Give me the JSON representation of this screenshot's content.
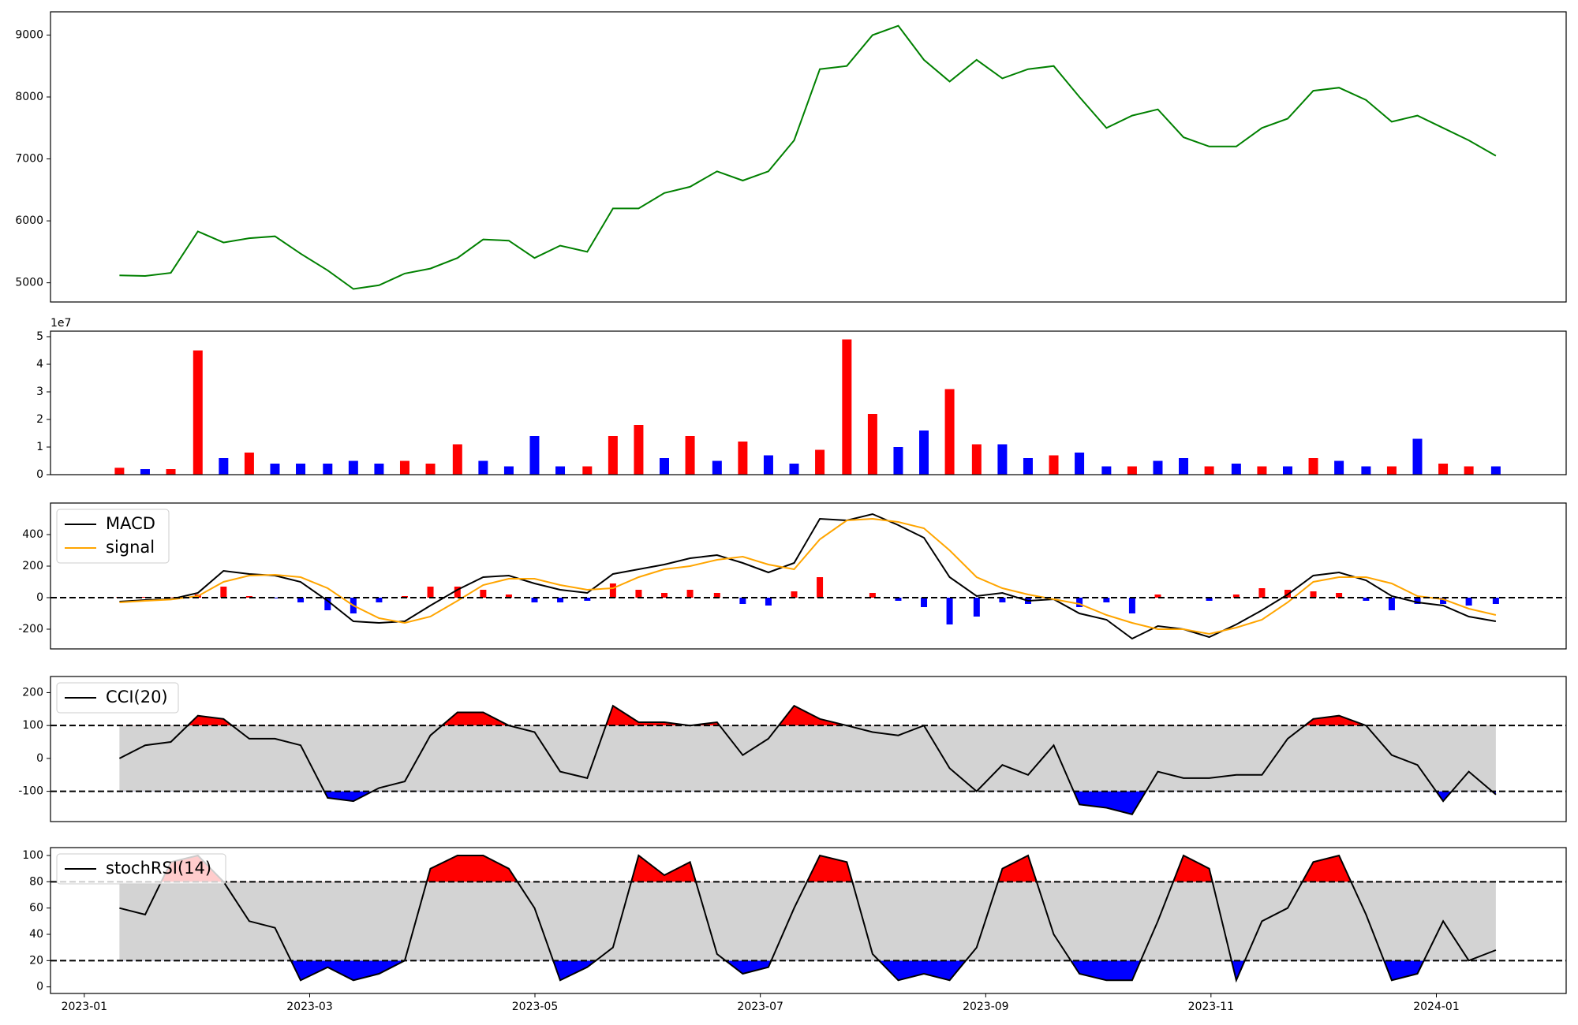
{
  "chart_data": [
    {
      "type": "line",
      "x": [
        2023.026,
        2023.045,
        2023.064,
        2023.084,
        2023.103,
        2023.122,
        2023.141,
        2023.16,
        2023.18,
        2023.199,
        2023.218,
        2023.237,
        2023.256,
        2023.276,
        2023.295,
        2023.314,
        2023.333,
        2023.352,
        2023.372,
        2023.391,
        2023.41,
        2023.429,
        2023.448,
        2023.468,
        2023.487,
        2023.506,
        2023.525,
        2023.544,
        2023.564,
        2023.583,
        2023.602,
        2023.621,
        2023.64,
        2023.66,
        2023.679,
        2023.698,
        2023.717,
        2023.736,
        2023.756,
        2023.775,
        2023.794,
        2023.813,
        2023.832,
        2023.852,
        2023.871,
        2023.89,
        2023.909,
        2023.928,
        2023.948,
        2023.967,
        2023.986,
        2024.005,
        2024.024,
        2024.044
      ],
      "xlim": [
        2022.975,
        2024.096
      ],
      "values": [
        5120,
        5110,
        5160,
        5830,
        5650,
        5720,
        5750,
        5470,
        5200,
        4900,
        4960,
        5150,
        5230,
        5400,
        5700,
        5680,
        5400,
        5600,
        5500,
        6200,
        6200,
        6450,
        6550,
        6800,
        6650,
        6800,
        7300,
        8450,
        8500,
        9000,
        9150,
        8600,
        8250,
        8600,
        8300,
        8450,
        8500,
        8000,
        7500,
        7700,
        7800,
        7350,
        7200,
        7200,
        7500,
        7650,
        8100,
        8150,
        7950,
        7600,
        7700,
        7500,
        7300,
        7050
      ],
      "color": "green",
      "ylim": [
        4690,
        9375
      ],
      "yticks": [
        5000,
        6000,
        7000,
        8000,
        9000
      ]
    },
    {
      "type": "bar",
      "offset_label": "1e7",
      "values": [
        0.25,
        0.2,
        0.2,
        4.5,
        0.6,
        0.8,
        0.4,
        0.4,
        0.4,
        0.5,
        0.4,
        0.5,
        0.4,
        1.1,
        0.5,
        0.3,
        1.4,
        0.3,
        0.3,
        1.4,
        1.8,
        0.6,
        1.4,
        0.5,
        1.2,
        0.7,
        0.4,
        0.9,
        4.9,
        2.2,
        1.0,
        1.6,
        3.1,
        1.1,
        1.1,
        0.6,
        0.7,
        0.8,
        0.3,
        0.3,
        0.5,
        0.6,
        0.3,
        0.4,
        0.3,
        0.3,
        0.6,
        0.5,
        0.3,
        0.3,
        1.3,
        0.4,
        0.3,
        0.3
      ],
      "colors": [
        "red",
        "blue",
        "red",
        "red",
        "blue",
        "red",
        "blue",
        "blue",
        "blue",
        "blue",
        "blue",
        "red",
        "red",
        "red",
        "blue",
        "blue",
        "blue",
        "blue",
        "red",
        "red",
        "red",
        "blue",
        "red",
        "blue",
        "red",
        "blue",
        "blue",
        "red",
        "red",
        "red",
        "blue",
        "blue",
        "red",
        "red",
        "blue",
        "blue",
        "red",
        "blue",
        "blue",
        "red",
        "blue",
        "blue",
        "red",
        "blue",
        "red",
        "blue",
        "red",
        "blue",
        "blue",
        "red",
        "blue",
        "red",
        "red",
        "blue"
      ],
      "ylim": [
        0,
        5.2
      ],
      "yticks": [
        0,
        1,
        2,
        3,
        4,
        5
      ]
    },
    {
      "type": "macd",
      "legend": "upper left",
      "series": [
        {
          "name": "MACD",
          "color": "black",
          "values": [
            -25,
            -15,
            -10,
            30,
            170,
            150,
            140,
            100,
            -20,
            -150,
            -160,
            -150,
            -50,
            50,
            130,
            140,
            90,
            50,
            30,
            150,
            180,
            210,
            250,
            270,
            220,
            160,
            220,
            500,
            490,
            530,
            460,
            380,
            130,
            10,
            30,
            -20,
            -10,
            -100,
            -140,
            -260,
            -180,
            -200,
            -250,
            -170,
            -80,
            20,
            140,
            160,
            110,
            10,
            -30,
            -50,
            -120,
            -150
          ]
        },
        {
          "name": "signal",
          "color": "orange",
          "values": [
            -30,
            -20,
            -12,
            10,
            100,
            140,
            145,
            130,
            60,
            -50,
            -130,
            -160,
            -120,
            -20,
            80,
            120,
            120,
            80,
            50,
            60,
            130,
            180,
            200,
            240,
            260,
            210,
            180,
            370,
            490,
            500,
            480,
            440,
            300,
            130,
            60,
            20,
            -10,
            -40,
            -110,
            -160,
            -200,
            -200,
            -230,
            -190,
            -140,
            -30,
            100,
            130,
            130,
            90,
            10,
            -10,
            -70,
            -110
          ]
        }
      ],
      "histogram": {
        "values": [
          5,
          5,
          2,
          20,
          70,
          10,
          -5,
          -30,
          -80,
          -100,
          -30,
          10,
          70,
          70,
          50,
          20,
          -30,
          -30,
          -20,
          90,
          50,
          30,
          50,
          30,
          -40,
          -50,
          40,
          130,
          0,
          30,
          -20,
          -60,
          -170,
          -120,
          -30,
          -40,
          0,
          -60,
          -30,
          -100,
          20,
          0,
          -20,
          20,
          60,
          50,
          40,
          30,
          -20,
          -80,
          -40,
          -40,
          -50,
          -40
        ],
        "up_color": "red",
        "down_color": "blue"
      },
      "hlines": [
        0
      ],
      "ylim": [
        -325,
        600
      ],
      "yticks": [
        -200,
        0,
        200,
        400
      ]
    },
    {
      "type": "oscillator",
      "legend": "upper left",
      "series": [
        {
          "name": "CCI(20)",
          "color": "black",
          "values": [
            0,
            40,
            50,
            130,
            120,
            60,
            60,
            40,
            -120,
            -130,
            -90,
            -70,
            70,
            140,
            140,
            100,
            80,
            -40,
            -60,
            160,
            110,
            110,
            100,
            110,
            10,
            60,
            160,
            120,
            100,
            80,
            70,
            100,
            -30,
            -100,
            -20,
            -50,
            40,
            -140,
            -150,
            -170,
            -40,
            -60,
            -60,
            -50,
            -50,
            60,
            120,
            130,
            100,
            10,
            -20,
            -130,
            -40,
            -110
          ]
        }
      ],
      "hlines": [
        -100,
        100
      ],
      "upper_color": "red",
      "lower_color": "blue",
      "band_color": "lightgray",
      "ylim": [
        -192,
        249
      ],
      "yticks": [
        -100,
        0,
        100,
        200
      ]
    },
    {
      "type": "oscillator",
      "legend": "upper left",
      "series": [
        {
          "name": "stochRSI(14)",
          "color": "black",
          "values": [
            60,
            55,
            95,
            100,
            80,
            50,
            45,
            5,
            15,
            5,
            10,
            20,
            90,
            100,
            100,
            90,
            60,
            5,
            15,
            30,
            100,
            85,
            95,
            25,
            10,
            15,
            60,
            100,
            95,
            25,
            5,
            10,
            5,
            30,
            90,
            100,
            40,
            10,
            5,
            5,
            50,
            100,
            90,
            5,
            50,
            60,
            95,
            100,
            55,
            5,
            10,
            50,
            20,
            28
          ]
        }
      ],
      "hlines": [
        20,
        80
      ],
      "upper_color": "red",
      "lower_color": "blue",
      "band_color": "lightgray",
      "ylim": [
        -5,
        106
      ],
      "yticks": [
        0,
        20,
        40,
        60,
        80,
        100
      ],
      "xticks": [
        {
          "value": 2023.0,
          "label": "2023-01"
        },
        {
          "value": 2023.1667,
          "label": "2023-03"
        },
        {
          "value": 2023.3333,
          "label": "2023-05"
        },
        {
          "value": 2023.5,
          "label": "2023-07"
        },
        {
          "value": 2023.6667,
          "label": "2023-09"
        },
        {
          "value": 2023.8333,
          "label": "2023-11"
        },
        {
          "value": 2024.0,
          "label": "2024-01"
        }
      ]
    }
  ]
}
